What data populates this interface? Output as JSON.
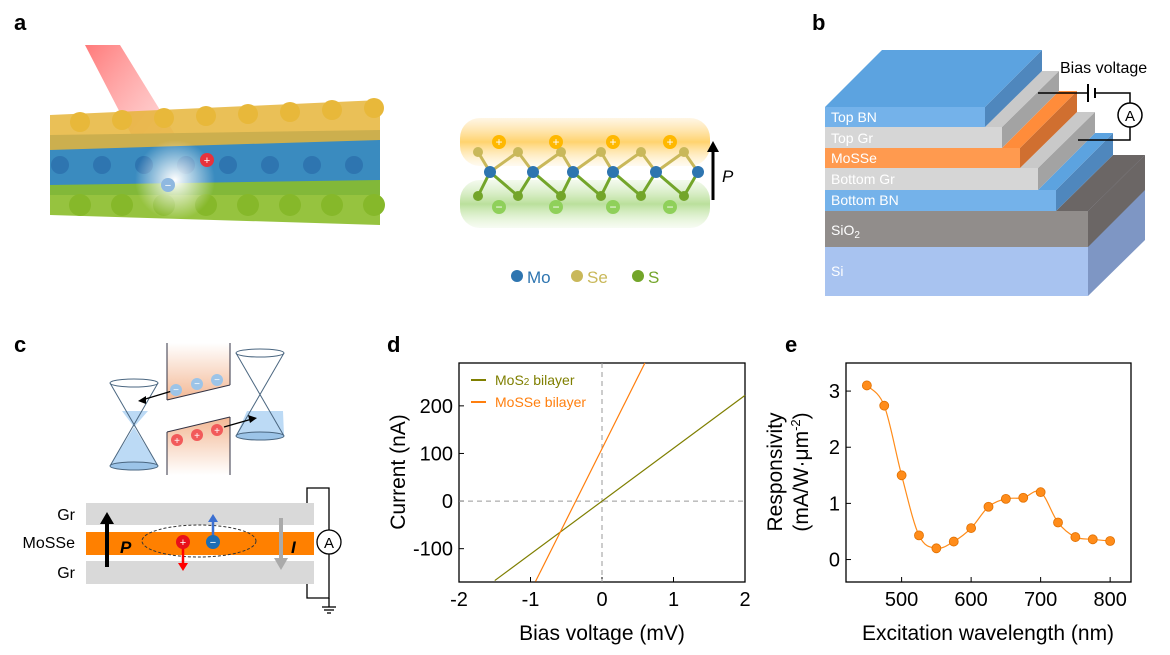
{
  "panels": {
    "a": "a",
    "b": "b",
    "c": "c",
    "d": "d",
    "e": "e"
  },
  "panel_a": {
    "plus": "+",
    "minus": "−",
    "polarization": "P",
    "legend": [
      {
        "label": "Mo",
        "color": "#2e75b0"
      },
      {
        "label": "Se",
        "color": "#c9b85a"
      },
      {
        "label": "S",
        "color": "#73a52a"
      }
    ]
  },
  "panel_b": {
    "bias_label": "Bias voltage",
    "ammeter": "A",
    "layers": [
      {
        "label": "Top BN",
        "color": "#74b2ea"
      },
      {
        "label": "Top Gr",
        "color": "#d6d6d6"
      },
      {
        "label": "MoSSe",
        "color": "#ff9a4f"
      },
      {
        "label": "Bottom Gr",
        "color": "#d6d6d6"
      },
      {
        "label": "Bottom BN",
        "color": "#74b2ea"
      },
      {
        "label": "SiO",
        "sub": "2",
        "color": "#918d8b"
      },
      {
        "label": "Si",
        "color": "#a8c3f0"
      }
    ]
  },
  "panel_c": {
    "gr_top": "Gr",
    "mosse": "MoSSe",
    "gr_bottom": "Gr",
    "polarization": "P",
    "current": "I",
    "ammeter": "A",
    "plus": "+",
    "minus": "−"
  },
  "chart_data": [
    {
      "type": "line",
      "panel": "d",
      "xlabel": "Bias voltage (mV)",
      "ylabel": "Current (nA)",
      "xlim": [
        -2,
        2
      ],
      "ylim": [
        -170,
        290
      ],
      "xticks": [
        -2,
        -1,
        0,
        1,
        2
      ],
      "yticks": [
        -100,
        0,
        100,
        200
      ],
      "reference_lines": {
        "x": 0,
        "y": 0
      },
      "legend_position": "top-left",
      "series": [
        {
          "name": "MoS2 bilayer",
          "name_main": "MoS",
          "name_sub": "2",
          "name_tail": " bilayer",
          "color": "#7f7f00",
          "x": [
            -1.5,
            2
          ],
          "y": [
            -167,
            222
          ]
        },
        {
          "name": "MoSSe bilayer",
          "color": "#ff7f0e",
          "x": [
            -0.93,
            0.6
          ],
          "y": [
            -169,
            290
          ]
        }
      ]
    },
    {
      "type": "scatter",
      "panel": "e",
      "xlabel": "Excitation wavelength (nm)",
      "ylabel_line1": "Responsivity",
      "ylabel_line2": "(mA/W·μm",
      "ylabel_sup": "-2",
      "ylabel_end": ")",
      "xlim": [
        420,
        830
      ],
      "ylim": [
        -0.4,
        3.5
      ],
      "xticks": [
        500,
        600,
        700,
        800
      ],
      "yticks": [
        0,
        1,
        2,
        3
      ],
      "color": "#ff8c1a",
      "x": [
        450,
        475,
        500,
        525,
        550,
        575,
        600,
        625,
        650,
        675,
        700,
        725,
        750,
        775,
        800
      ],
      "y": [
        3.1,
        2.74,
        1.5,
        0.43,
        0.2,
        0.32,
        0.56,
        0.94,
        1.08,
        1.1,
        1.2,
        0.66,
        0.4,
        0.36,
        0.33
      ]
    }
  ]
}
